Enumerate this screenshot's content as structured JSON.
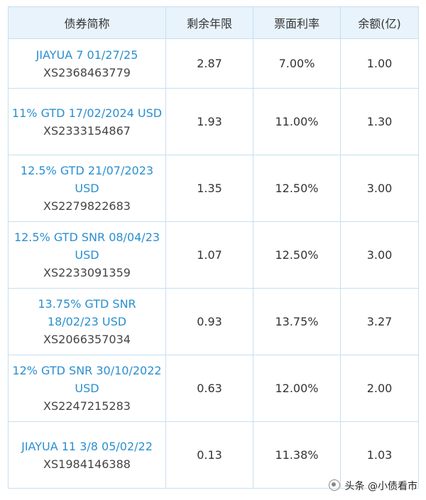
{
  "table": {
    "headers": [
      "债券简称",
      "剩余年限",
      "票面利率",
      "余额(亿)"
    ],
    "rows": [
      {
        "name": "JIAYUA 7 01/27/25",
        "code": "XS2368463779",
        "years": "2.87",
        "coupon": "7.00%",
        "balance": "1.00"
      },
      {
        "name": "11% GTD 17/02/2024 USD",
        "code": "XS2333154867",
        "years": "1.93",
        "coupon": "11.00%",
        "balance": "1.30"
      },
      {
        "name": "12.5% GTD 21/07/2023 USD",
        "code": "XS2279822683",
        "years": "1.35",
        "coupon": "12.50%",
        "balance": "3.00"
      },
      {
        "name": "12.5% GTD SNR 08/04/23 USD",
        "code": "XS2233091359",
        "years": "1.07",
        "coupon": "12.50%",
        "balance": "3.00"
      },
      {
        "name": "13.75% GTD SNR 18/02/23 USD",
        "code": "XS2066357034",
        "years": "0.93",
        "coupon": "13.75%",
        "balance": "3.27"
      },
      {
        "name": "12% GTD SNR 30/10/2022 USD",
        "code": "XS2247215283",
        "years": "0.63",
        "coupon": "12.00%",
        "balance": "2.00"
      },
      {
        "name": "JIAYUA 11 3/8 05/02/22",
        "code": "XS1984146388",
        "years": "0.13",
        "coupon": "11.38%",
        "balance": "1.03"
      }
    ]
  },
  "watermark": {
    "text": "头条 @小债看市"
  }
}
